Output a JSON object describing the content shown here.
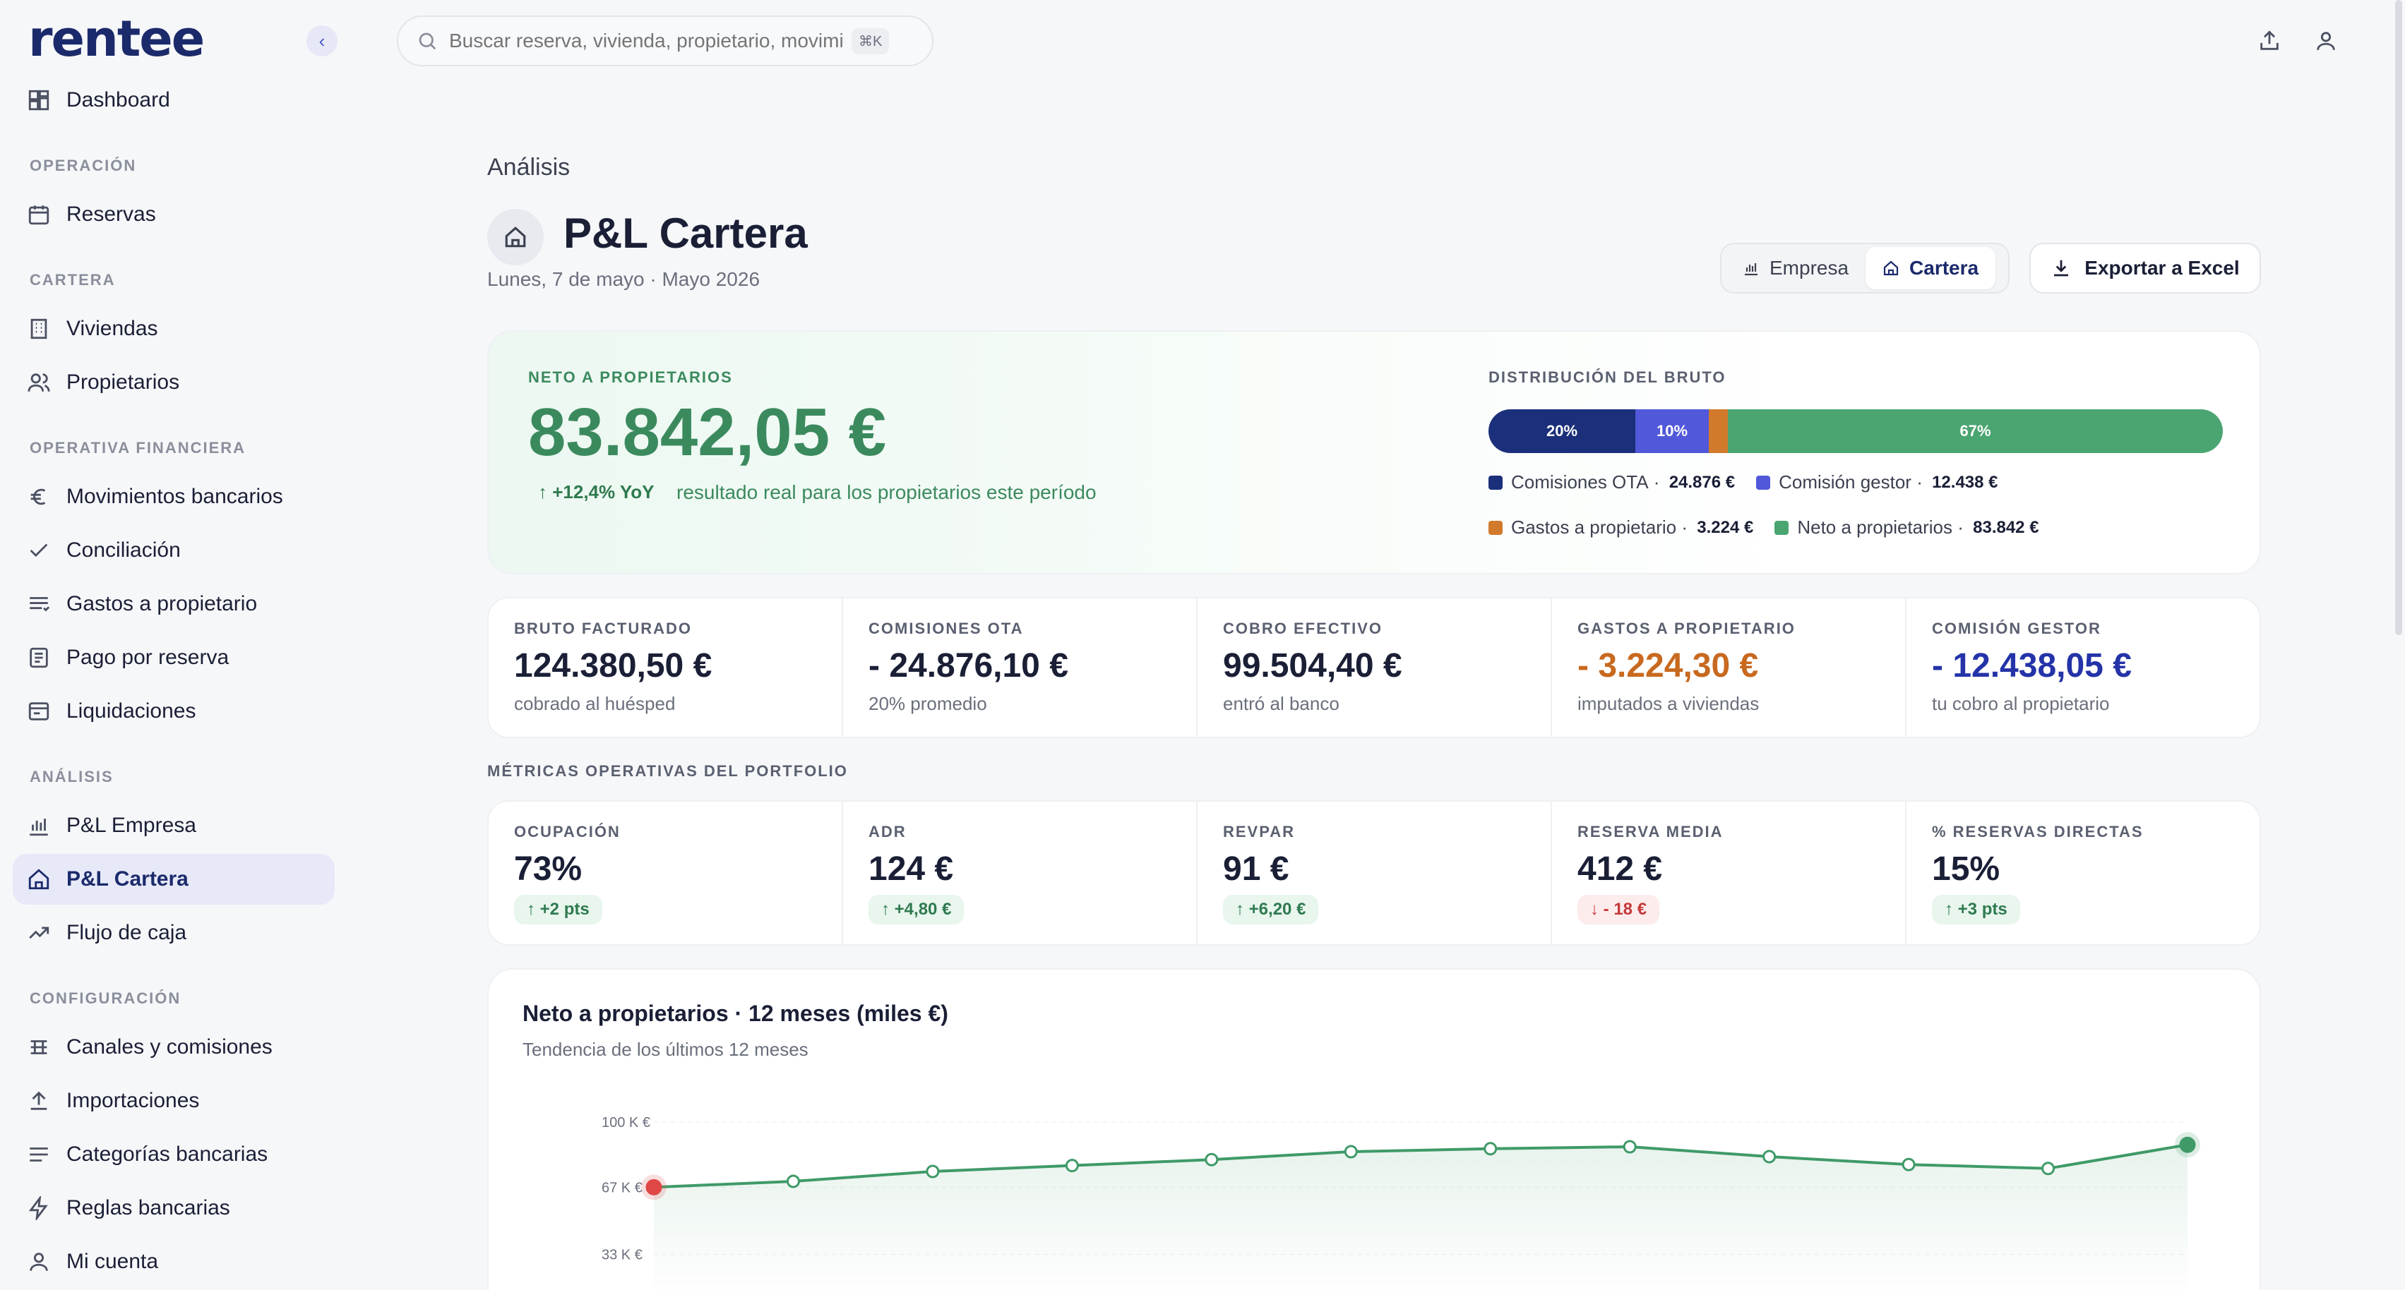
{
  "app": {
    "logo": "rentee",
    "collapse_label": "‹"
  },
  "sidebar": {
    "dashboard": "Dashboard",
    "sections": [
      {
        "title": "OPERACIÓN",
        "items": [
          "Reservas"
        ]
      },
      {
        "title": "CARTERA",
        "items": [
          "Viviendas",
          "Propietarios"
        ]
      },
      {
        "title": "OPERATIVA FINANCIERA",
        "items": [
          "Movimientos bancarios",
          "Conciliación",
          "Gastos a propietario",
          "Pago por reserva",
          "Liquidaciones"
        ]
      },
      {
        "title": "ANÁLISIS",
        "items": [
          "P&L Empresa",
          "P&L Cartera",
          "Flujo de caja"
        ]
      },
      {
        "title": "CONFIGURACIÓN",
        "items": [
          "Canales y comisiones",
          "Importaciones",
          "Categorías bancarias",
          "Reglas bancarias",
          "Mi cuenta"
        ]
      }
    ],
    "active_item": "P&L Cartera"
  },
  "search": {
    "placeholder": "Buscar reserva, vivienda, propietario, movimiento...",
    "shortcut": "⌘K"
  },
  "header": {
    "breadcrumb": "Análisis",
    "title": "P&L Cartera",
    "subtitle": "Lunes, 7 de mayo · Mayo 2026",
    "toggle": {
      "empresa": "Empresa",
      "cartera": "Cartera",
      "selected": "Cartera"
    },
    "export_label": "Exportar a Excel"
  },
  "hero": {
    "label": "NETO A PROPIETARIOS",
    "value": "83.842,05 €",
    "change": "↑ +12,4% YoY",
    "description": "resultado real para los propietarios este período",
    "distribution_label": "DISTRIBUCIÓN DEL BRUTO",
    "distribution": [
      {
        "name": "Comisiones OTA",
        "amount": "24.876 €",
        "pct_label": "20%",
        "share": 20,
        "color": "#1b2f7a"
      },
      {
        "name": "Comisión gestor",
        "amount": "12.438 €",
        "pct_label": "10%",
        "share": 10,
        "color": "#5158d9"
      },
      {
        "name": "Gastos a propietario",
        "amount": "3.224 €",
        "pct_label": "",
        "share": 2.6,
        "color": "#d27a2c"
      },
      {
        "name": "Neto a propietarios",
        "amount": "83.842 €",
        "pct_label": "67%",
        "share": 67.4,
        "color": "#4aa571"
      }
    ]
  },
  "kpis": [
    {
      "label": "BRUTO FACTURADO",
      "value": "124.380,50 €",
      "sub": "cobrado al huésped",
      "color": "#1a1f36"
    },
    {
      "label": "COMISIONES OTA",
      "value": "- 24.876,10 €",
      "sub": "20% promedio",
      "color": "#1a1f36"
    },
    {
      "label": "COBRO EFECTIVO",
      "value": "99.504,40 €",
      "sub": "entró al banco",
      "color": "#1a1f36"
    },
    {
      "label": "GASTOS A PROPIETARIO",
      "value": "- 3.224,30 €",
      "sub": "imputados a viviendas",
      "color": "#c8691f"
    },
    {
      "label": "COMISIÓN GESTOR",
      "value": "- 12.438,05 €",
      "sub": "tu cobro al propietario",
      "color": "#2433a8"
    }
  ],
  "metrics_label": "MÉTRICAS OPERATIVAS DEL PORTFOLIO",
  "metrics": [
    {
      "label": "OCUPACIÓN",
      "value": "73%",
      "change": "↑ +2 pts",
      "trend": "up"
    },
    {
      "label": "ADR",
      "value": "124 €",
      "change": "↑ +4,80 €",
      "trend": "up"
    },
    {
      "label": "REVPAR",
      "value": "91 €",
      "change": "↑ +6,20 €",
      "trend": "up"
    },
    {
      "label": "RESERVA MEDIA",
      "value": "412 €",
      "change": "↓ - 18 €",
      "trend": "down"
    },
    {
      "label": "% RESERVAS DIRECTAS",
      "value": "15%",
      "change": "↑ +3 pts",
      "trend": "up"
    }
  ],
  "chart_data": {
    "type": "line",
    "title": "Neto a propietarios · 12 meses (miles €)",
    "subtitle": "Tendencia de los últimos 12 meses",
    "y_ticks": [
      "100 K €",
      "67 K €",
      "33 K €"
    ],
    "y_tick_values": [
      100,
      67,
      33
    ],
    "ylim": [
      0,
      100
    ],
    "values": [
      67,
      70,
      75,
      78,
      81,
      85,
      86.5,
      87.5,
      82.5,
      78.5,
      76.5,
      88.5
    ],
    "line_color": "#3f9a68",
    "first_point_color": "#e04848"
  }
}
